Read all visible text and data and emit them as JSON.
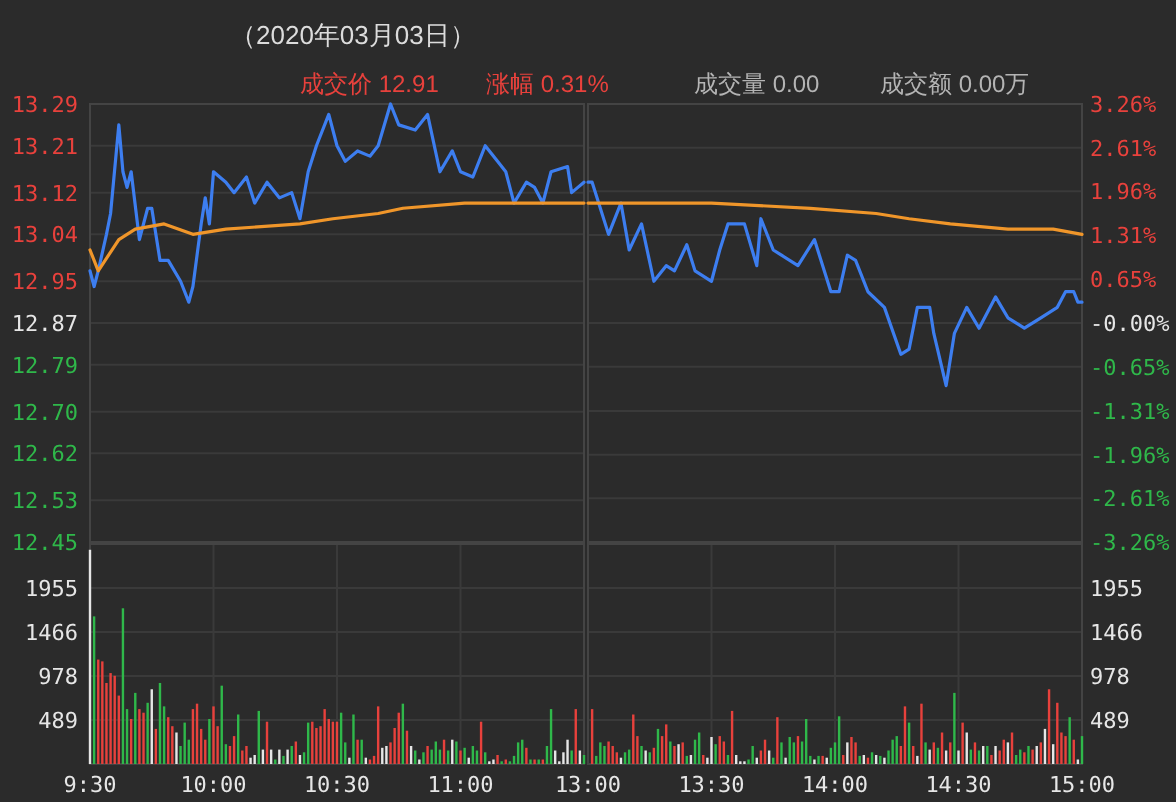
{
  "chart_data": [
    {
      "type": "line",
      "title": "（2020年03月03日）",
      "annotations": [
        "成交价 12.91",
        "涨幅 0.31%",
        "成交量 0.00",
        "成交额 0.00万"
      ],
      "series": [
        {
          "color": "#3d7ef0",
          "x": [
            "2020-03-03T09:30",
            "2020-03-03T09:31",
            "2020-03-03T09:32",
            "2020-03-03T09:34",
            "2020-03-03T09:35",
            "2020-03-03T09:37",
            "2020-03-03T09:38",
            "2020-03-03T09:39",
            "2020-03-03T09:40",
            "2020-03-03T09:42",
            "2020-03-03T09:44",
            "2020-03-03T09:45",
            "2020-03-03T09:47",
            "2020-03-03T09:49",
            "2020-03-03T09:52",
            "2020-03-03T09:54",
            "2020-03-03T09:55",
            "2020-03-03T09:57",
            "2020-03-03T09:58",
            "2020-03-03T09:59",
            "2020-03-03T10:00",
            "2020-03-03T10:03",
            "2020-03-03T10:05",
            "2020-03-03T10:08",
            "2020-03-03T10:10",
            "2020-03-03T10:13",
            "2020-03-03T10:16",
            "2020-03-03T10:19",
            "2020-03-03T10:21",
            "2020-03-03T10:23",
            "2020-03-03T10:25",
            "2020-03-03T10:28",
            "2020-03-03T10:30",
            "2020-03-03T10:32",
            "2020-03-03T10:35",
            "2020-03-03T10:38",
            "2020-03-03T10:40",
            "2020-03-03T10:43",
            "2020-03-03T10:45",
            "2020-03-03T10:49",
            "2020-03-03T10:52",
            "2020-03-03T10:55",
            "2020-03-03T10:58",
            "2020-03-03T11:00",
            "2020-03-03T11:03",
            "2020-03-03T11:06",
            "2020-03-03T11:09",
            "2020-03-03T11:11",
            "2020-03-03T11:13",
            "2020-03-03T11:16",
            "2020-03-03T11:18",
            "2020-03-03T11:20",
            "2020-03-03T11:22",
            "2020-03-03T11:26",
            "2020-03-03T11:27",
            "2020-03-03T11:30"
          ],
          "values": [
            12.97,
            12.94,
            12.97,
            13.04,
            13.08,
            13.25,
            13.16,
            13.13,
            13.16,
            13.03,
            13.09,
            13.09,
            12.99,
            12.99,
            12.95,
            12.91,
            12.94,
            13.06,
            13.11,
            13.06,
            13.16,
            13.14,
            13.12,
            13.15,
            13.1,
            13.14,
            13.11,
            13.12,
            13.07,
            13.16,
            13.21,
            13.27,
            13.21,
            13.18,
            13.2,
            13.19,
            13.21,
            13.29,
            13.25,
            13.24,
            13.27,
            13.16,
            13.2,
            13.16,
            13.15,
            13.21,
            13.18,
            13.16,
            13.1,
            13.14,
            13.13,
            13.1,
            13.16,
            13.17,
            13.12,
            13.14
          ]
        },
        {
          "color": "#f0962a",
          "x": [
            "2020-03-03T09:30",
            "2020-03-03T09:32",
            "2020-03-03T09:37",
            "2020-03-03T09:41",
            "2020-03-03T09:48",
            "2020-03-03T09:55",
            "2020-03-03T10:03",
            "2020-03-03T10:21",
            "2020-03-03T10:29",
            "2020-03-03T10:40",
            "2020-03-03T10:46",
            "2020-03-03T11:01",
            "2020-03-03T11:30"
          ],
          "values": [
            13.01,
            12.97,
            13.03,
            13.05,
            13.06,
            13.04,
            13.05,
            13.06,
            13.07,
            13.08,
            13.09,
            13.1,
            13.1
          ]
        }
      ],
      "xlim": [
        "2020-03-03T09:30",
        "2020-03-03T11:30"
      ],
      "ylim": [
        12.45,
        13.29
      ],
      "yticks": [
        13.29,
        13.21,
        13.12,
        13.04,
        12.95,
        12.87,
        12.79,
        {
          "value": 12.7,
          "label": "12.70"
        },
        12.62,
        12.53,
        12.45
      ],
      "tick_labels": "y",
      "grid": "y"
    },
    {
      "type": "line",
      "series": [
        {
          "color": "#3d7ef0",
          "x": [
            "2020-03-03T13:00",
            "2020-03-03T13:01",
            "2020-03-03T13:05",
            "2020-03-03T13:08",
            "2020-03-03T13:10",
            "2020-03-03T13:13",
            "2020-03-03T13:16",
            "2020-03-03T13:19",
            "2020-03-03T13:21",
            "2020-03-03T13:24",
            "2020-03-03T13:26",
            "2020-03-03T13:30",
            "2020-03-03T13:32",
            "2020-03-03T13:34",
            "2020-03-03T13:38",
            "2020-03-03T13:41",
            "2020-03-03T13:42",
            "2020-03-03T13:45",
            "2020-03-03T13:47",
            "2020-03-03T13:51",
            "2020-03-03T13:55",
            "2020-03-03T13:59",
            "2020-03-03T14:01",
            "2020-03-03T14:03",
            "2020-03-03T14:05",
            "2020-03-03T14:08",
            "2020-03-03T14:12",
            "2020-03-03T14:16",
            "2020-03-03T14:18",
            "2020-03-03T14:20",
            "2020-03-03T14:23",
            "2020-03-03T14:24",
            "2020-03-03T14:27",
            "2020-03-03T14:29",
            "2020-03-03T14:32",
            "2020-03-03T14:35",
            "2020-03-03T14:39",
            "2020-03-03T14:42",
            "2020-03-03T14:46",
            "2020-03-03T14:50",
            "2020-03-03T14:54",
            "2020-03-03T14:56",
            "2020-03-03T14:58",
            "2020-03-03T14:59",
            "2020-03-03T15:00"
          ],
          "values": [
            13.14,
            13.14,
            13.04,
            13.1,
            13.01,
            13.06,
            12.95,
            12.98,
            12.97,
            13.02,
            12.97,
            12.95,
            13.01,
            13.06,
            13.06,
            12.98,
            13.07,
            13.01,
            13.0,
            12.98,
            13.03,
            12.93,
            12.93,
            13.0,
            12.99,
            12.93,
            12.9,
            12.81,
            12.82,
            12.9,
            12.9,
            12.85,
            12.75,
            12.85,
            12.9,
            12.86,
            12.92,
            12.88,
            12.86,
            12.88,
            12.9,
            12.93,
            12.93,
            12.91,
            12.91
          ]
        },
        {
          "color": "#f0962a",
          "x": [
            "2020-03-03T13:00",
            "2020-03-03T13:30",
            "2020-03-03T13:54",
            "2020-03-03T14:10",
            "2020-03-03T14:18",
            "2020-03-03T14:28",
            "2020-03-03T14:42",
            "2020-03-03T14:53",
            "2020-03-03T15:00"
          ],
          "values": [
            13.1,
            13.1,
            13.09,
            13.08,
            13.07,
            13.06,
            13.05,
            13.05,
            13.04
          ]
        }
      ],
      "xlim": [
        "2020-03-03T13:00",
        "2020-03-03T15:00"
      ],
      "ylim": [
        12.45,
        13.29
      ],
      "y2lim": [
        -3.26,
        3.26
      ],
      "y2ticks": [
        {
          "value": 3.26,
          "label": "3.26%"
        },
        {
          "value": 2.61,
          "label": "2.61%"
        },
        {
          "value": 1.96,
          "label": "1.96%"
        },
        {
          "value": 1.31,
          "label": "1.31%"
        },
        {
          "value": 0.65,
          "label": "0.65%"
        },
        {
          "value": 0,
          "label": "-0.00%"
        },
        {
          "value": -0.65,
          "label": "-0.65%"
        },
        {
          "value": -1.31,
          "label": "-1.31%"
        },
        {
          "value": -1.96,
          "label": "-1.96%"
        },
        {
          "value": -2.61,
          "label": "-2.61%"
        },
        {
          "value": -3.26,
          "label": "-3.26%"
        }
      ],
      "tick_labels": "y",
      "grid": "y"
    },
    {
      "type": "bar",
      "series": [
        {
          "x": [
            "2020-03-03T09:30",
            "2020-03-03T09:31",
            "2020-03-03T09:32",
            "2020-03-03T09:33",
            "2020-03-03T09:34",
            "2020-03-03T09:35",
            "2020-03-03T09:36",
            "2020-03-03T09:37",
            "2020-03-03T09:38",
            "2020-03-03T09:39",
            "2020-03-03T09:40",
            "2020-03-03T09:41",
            "2020-03-03T09:42",
            "2020-03-03T09:43",
            "2020-03-03T09:44",
            "2020-03-03T09:45",
            "2020-03-03T09:46",
            "2020-03-03T09:47",
            "2020-03-03T09:48",
            "2020-03-03T09:49",
            "2020-03-03T09:50",
            "2020-03-03T09:51",
            "2020-03-03T09:52",
            "2020-03-03T09:53",
            "2020-03-03T09:54",
            "2020-03-03T09:55",
            "2020-03-03T09:56",
            "2020-03-03T09:57",
            "2020-03-03T09:58",
            "2020-03-03T09:59",
            "2020-03-03T10:00",
            "2020-03-03T10:01",
            "2020-03-03T10:02",
            "2020-03-03T10:03",
            "2020-03-03T10:04",
            "2020-03-03T10:05",
            "2020-03-03T10:06",
            "2020-03-03T10:07",
            "2020-03-03T10:08",
            "2020-03-03T10:09",
            "2020-03-03T10:10",
            "2020-03-03T10:11",
            "2020-03-03T10:12",
            "2020-03-03T10:13",
            "2020-03-03T10:14",
            "2020-03-03T10:15",
            "2020-03-03T10:16",
            "2020-03-03T10:17",
            "2020-03-03T10:18",
            "2020-03-03T10:19",
            "2020-03-03T10:20",
            "2020-03-03T10:21",
            "2020-03-03T10:22",
            "2020-03-03T10:23",
            "2020-03-03T10:24",
            "2020-03-03T10:25",
            "2020-03-03T10:26",
            "2020-03-03T10:27",
            "2020-03-03T10:28",
            "2020-03-03T10:29",
            "2020-03-03T10:30",
            "2020-03-03T10:31",
            "2020-03-03T10:32",
            "2020-03-03T10:33",
            "2020-03-03T10:34",
            "2020-03-03T10:35",
            "2020-03-03T10:36",
            "2020-03-03T10:37",
            "2020-03-03T10:38",
            "2020-03-03T10:39",
            "2020-03-03T10:40",
            "2020-03-03T10:41",
            "2020-03-03T10:42",
            "2020-03-03T10:43",
            "2020-03-03T10:44",
            "2020-03-03T10:45",
            "2020-03-03T10:46",
            "2020-03-03T10:47",
            "2020-03-03T10:48",
            "2020-03-03T10:49",
            "2020-03-03T10:50",
            "2020-03-03T10:51",
            "2020-03-03T10:52",
            "2020-03-03T10:53",
            "2020-03-03T10:54",
            "2020-03-03T10:55",
            "2020-03-03T10:56",
            "2020-03-03T10:57",
            "2020-03-03T10:58",
            "2020-03-03T10:59",
            "2020-03-03T11:00",
            "2020-03-03T11:01",
            "2020-03-03T11:02",
            "2020-03-03T11:03",
            "2020-03-03T11:04",
            "2020-03-03T11:05",
            "2020-03-03T11:06",
            "2020-03-03T11:07",
            "2020-03-03T11:08",
            "2020-03-03T11:09",
            "2020-03-03T11:10",
            "2020-03-03T11:11",
            "2020-03-03T11:12",
            "2020-03-03T11:13",
            "2020-03-03T11:14",
            "2020-03-03T11:15",
            "2020-03-03T11:16",
            "2020-03-03T11:17",
            "2020-03-03T11:18",
            "2020-03-03T11:19",
            "2020-03-03T11:20",
            "2020-03-03T11:21",
            "2020-03-03T11:22",
            "2020-03-03T11:23",
            "2020-03-03T11:24",
            "2020-03-03T11:25",
            "2020-03-03T11:26",
            "2020-03-03T11:27",
            "2020-03-03T11:28",
            "2020-03-03T11:29",
            "2020-03-03T11:30"
          ],
          "values": [
            2380,
            1640,
            1160,
            1140,
            900,
            1010,
            980,
            760,
            1730,
            610,
            500,
            790,
            610,
            570,
            680,
            830,
            390,
            900,
            640,
            520,
            420,
            350,
            200,
            460,
            270,
            610,
            670,
            390,
            270,
            500,
            640,
            420,
            870,
            220,
            200,
            310,
            550,
            150,
            200,
            70,
            100,
            590,
            160,
            470,
            160,
            50,
            160,
            90,
            160,
            200,
            250,
            100,
            130,
            460,
            470,
            400,
            420,
            610,
            500,
            470,
            470,
            570,
            240,
            70,
            550,
            270,
            270,
            70,
            50,
            90,
            640,
            180,
            200,
            240,
            400,
            570,
            670,
            370,
            200,
            150,
            50,
            130,
            200,
            160,
            250,
            160,
            270,
            150,
            270,
            250,
            150,
            180,
            70,
            200,
            150,
            470,
            130,
            30,
            50,
            100,
            30,
            50,
            30,
            90,
            240,
            270,
            180,
            50,
            50,
            50,
            50,
            200,
            610,
            150,
            30,
            130,
            270,
            150,
            610,
            150,
            100
          ],
          "colors": [
            "#e6e6e6",
            "#2fb84a",
            "#e8413c",
            "#e8413c",
            "#e8413c",
            "#e8413c",
            "#e8413c",
            "#e8413c",
            "#2fb84a",
            "#2fb84a",
            "#e8413c",
            "#2fb84a",
            "#e8413c",
            "#e8413c",
            "#2fb84a",
            "#e6e6e6",
            "#e8413c",
            "#2fb84a",
            "#2fb84a",
            "#e8413c",
            "#e8413c",
            "#e6e6e6",
            "#2fb84a",
            "#2fb84a",
            "#2fb84a",
            "#e8413c",
            "#e8413c",
            "#e8413c",
            "#e8413c",
            "#2fb84a",
            "#e8413c",
            "#e8413c",
            "#2fb84a",
            "#2fb84a",
            "#e8413c",
            "#e8413c",
            "#2fb84a",
            "#e8413c",
            "#e8413c",
            "#e6e6e6",
            "#e6e6e6",
            "#2fb84a",
            "#e6e6e6",
            "#e8413c",
            "#e6e6e6",
            "#2fb84a",
            "#e6e6e6",
            "#2fb84a",
            "#e6e6e6",
            "#2fb84a",
            "#e8413c",
            "#e6e6e6",
            "#2fb84a",
            "#2fb84a",
            "#e8413c",
            "#e8413c",
            "#e8413c",
            "#e8413c",
            "#e8413c",
            "#e8413c",
            "#e8413c",
            "#2fb84a",
            "#2fb84a",
            "#e6e6e6",
            "#2fb84a",
            "#e8413c",
            "#2fb84a",
            "#e6e6e6",
            "#e8413c",
            "#e8413c",
            "#e8413c",
            "#e6e6e6",
            "#e6e6e6",
            "#e8413c",
            "#e8413c",
            "#e8413c",
            "#2fb84a",
            "#e8413c",
            "#e6e6e6",
            "#2fb84a",
            "#e6e6e6",
            "#2fb84a",
            "#e8413c",
            "#2fb84a",
            "#2fb84a",
            "#2fb84a",
            "#e8413c",
            "#2fb84a",
            "#e6e6e6",
            "#2fb84a",
            "#e8413c",
            "#2fb84a",
            "#e6e6e6",
            "#2fb84a",
            "#2fb84a",
            "#e8413c",
            "#2fb84a",
            "#e6e6e6",
            "#e6e6e6",
            "#e8413c",
            "#2fb84a",
            "#e8413c",
            "#2fb84a",
            "#2fb84a",
            "#2fb84a",
            "#2fb84a",
            "#e8413c",
            "#2fb84a",
            "#e8413c",
            "#2fb84a",
            "#e8413c",
            "#2fb84a",
            "#2fb84a",
            "#e6e6e6",
            "#e6e6e6",
            "#e6e6e6",
            "#e6e6e6",
            "#2fb84a",
            "#e8413c",
            "#e6e6e6",
            "#2fb84a"
          ]
        }
      ],
      "xlim": [
        "2020-03-03T09:30",
        "2020-03-03T11:30"
      ],
      "xticks": [
        {
          "value": "2020-03-03T09:30",
          "label": "9:30"
        },
        {
          "value": "2020-03-03T10:00",
          "label": "10:00"
        },
        {
          "value": "2020-03-03T10:30",
          "label": "10:30"
        },
        {
          "value": "2020-03-03T11:00",
          "label": "11:00"
        }
      ],
      "ylim": [
        0,
        2444
      ],
      "yticks": [
        489,
        978,
        1466,
        1955
      ],
      "grid": true
    },
    {
      "type": "bar",
      "series": [
        {
          "axis": "y2",
          "x": [
            "2020-03-03T13:01",
            "2020-03-03T13:02",
            "2020-03-03T13:03",
            "2020-03-03T13:04",
            "2020-03-03T13:05",
            "2020-03-03T13:06",
            "2020-03-03T13:07",
            "2020-03-03T13:08",
            "2020-03-03T13:09",
            "2020-03-03T13:10",
            "2020-03-03T13:11",
            "2020-03-03T13:12",
            "2020-03-03T13:13",
            "2020-03-03T13:14",
            "2020-03-03T13:15",
            "2020-03-03T13:16",
            "2020-03-03T13:17",
            "2020-03-03T13:18",
            "2020-03-03T13:19",
            "2020-03-03T13:20",
            "2020-03-03T13:21",
            "2020-03-03T13:22",
            "2020-03-03T13:23",
            "2020-03-03T13:24",
            "2020-03-03T13:25",
            "2020-03-03T13:26",
            "2020-03-03T13:27",
            "2020-03-03T13:28",
            "2020-03-03T13:29",
            "2020-03-03T13:30",
            "2020-03-03T13:31",
            "2020-03-03T13:32",
            "2020-03-03T13:33",
            "2020-03-03T13:34",
            "2020-03-03T13:35",
            "2020-03-03T13:36",
            "2020-03-03T13:37",
            "2020-03-03T13:38",
            "2020-03-03T13:39",
            "2020-03-03T13:40",
            "2020-03-03T13:41",
            "2020-03-03T13:42",
            "2020-03-03T13:43",
            "2020-03-03T13:44",
            "2020-03-03T13:45",
            "2020-03-03T13:46",
            "2020-03-03T13:47",
            "2020-03-03T13:48",
            "2020-03-03T13:49",
            "2020-03-03T13:50",
            "2020-03-03T13:51",
            "2020-03-03T13:52",
            "2020-03-03T13:53",
            "2020-03-03T13:54",
            "2020-03-03T13:55",
            "2020-03-03T13:56",
            "2020-03-03T13:57",
            "2020-03-03T13:58",
            "2020-03-03T13:59",
            "2020-03-03T14:00",
            "2020-03-03T14:01",
            "2020-03-03T14:02",
            "2020-03-03T14:03",
            "2020-03-03T14:04",
            "2020-03-03T14:05",
            "2020-03-03T14:06",
            "2020-03-03T14:07",
            "2020-03-03T14:08",
            "2020-03-03T14:09",
            "2020-03-03T14:10",
            "2020-03-03T14:11",
            "2020-03-03T14:12",
            "2020-03-03T14:13",
            "2020-03-03T14:14",
            "2020-03-03T14:15",
            "2020-03-03T14:16",
            "2020-03-03T14:17",
            "2020-03-03T14:18",
            "2020-03-03T14:19",
            "2020-03-03T14:20",
            "2020-03-03T14:21",
            "2020-03-03T14:22",
            "2020-03-03T14:23",
            "2020-03-03T14:24",
            "2020-03-03T14:25",
            "2020-03-03T14:26",
            "2020-03-03T14:27",
            "2020-03-03T14:28",
            "2020-03-03T14:29",
            "2020-03-03T14:30",
            "2020-03-03T14:31",
            "2020-03-03T14:32",
            "2020-03-03T14:33",
            "2020-03-03T14:34",
            "2020-03-03T14:35",
            "2020-03-03T14:36",
            "2020-03-03T14:37",
            "2020-03-03T14:38",
            "2020-03-03T14:39",
            "2020-03-03T14:40",
            "2020-03-03T14:41",
            "2020-03-03T14:42",
            "2020-03-03T14:43",
            "2020-03-03T14:44",
            "2020-03-03T14:45",
            "2020-03-03T14:46",
            "2020-03-03T14:47",
            "2020-03-03T14:48",
            "2020-03-03T14:49",
            "2020-03-03T14:50",
            "2020-03-03T14:51",
            "2020-03-03T14:52",
            "2020-03-03T14:53",
            "2020-03-03T14:54",
            "2020-03-03T14:55",
            "2020-03-03T14:56",
            "2020-03-03T14:57",
            "2020-03-03T14:58",
            "2020-03-03T14:59",
            "2020-03-03T15:00"
          ],
          "values": [
            610,
            90,
            240,
            200,
            250,
            200,
            130,
            70,
            130,
            160,
            550,
            310,
            200,
            150,
            130,
            180,
            390,
            310,
            440,
            250,
            200,
            220,
            240,
            90,
            100,
            270,
            350,
            100,
            70,
            300,
            220,
            310,
            250,
            100,
            590,
            100,
            30,
            30,
            50,
            200,
            70,
            150,
            270,
            150,
            70,
            520,
            240,
            70,
            300,
            240,
            310,
            250,
            500,
            90,
            50,
            90,
            90,
            70,
            180,
            240,
            530,
            100,
            240,
            300,
            240,
            90,
            100,
            70,
            130,
            100,
            90,
            70,
            150,
            270,
            310,
            200,
            640,
            460,
            200,
            90,
            670,
            240,
            160,
            240,
            180,
            350,
            150,
            240,
            790,
            150,
            460,
            350,
            160,
            240,
            150,
            200,
            200,
            100,
            200,
            150,
            270,
            240,
            350,
            100,
            160,
            130,
            200,
            160,
            200,
            240,
            390,
            830,
            220,
            680,
            350,
            310,
            520,
            270,
            50,
            310
          ],
          "colors": [
            "#e8413c",
            "#2fb84a",
            "#2fb84a",
            "#2fb84a",
            "#e8413c",
            "#e8413c",
            "#e8413c",
            "#e6e6e6",
            "#2fb84a",
            "#2fb84a",
            "#e8413c",
            "#e8413c",
            "#2fb84a",
            "#e6e6e6",
            "#2fb84a",
            "#e8413c",
            "#2fb84a",
            "#e8413c",
            "#e8413c",
            "#2fb84a",
            "#e8413c",
            "#e6e6e6",
            "#e8413c",
            "#2fb84a",
            "#e6e6e6",
            "#2fb84a",
            "#2fb84a",
            "#e8413c",
            "#e6e6e6",
            "#e6e6e6",
            "#2fb84a",
            "#e8413c",
            "#e8413c",
            "#2fb84a",
            "#e8413c",
            "#e6e6e6",
            "#e6e6e6",
            "#e6e6e6",
            "#2fb84a",
            "#2fb84a",
            "#e6e6e6",
            "#e8413c",
            "#e8413c",
            "#e6e6e6",
            "#2fb84a",
            "#e8413c",
            "#2fb84a",
            "#e6e6e6",
            "#2fb84a",
            "#2fb84a",
            "#e8413c",
            "#2fb84a",
            "#2fb84a",
            "#2fb84a",
            "#e6e6e6",
            "#2fb84a",
            "#e8413c",
            "#e6e6e6",
            "#2fb84a",
            "#2fb84a",
            "#2fb84a",
            "#e8413c",
            "#e6e6e6",
            "#e8413c",
            "#e8413c",
            "#2fb84a",
            "#e6e6e6",
            "#e8413c",
            "#2fb84a",
            "#e6e6e6",
            "#2fb84a",
            "#e6e6e6",
            "#2fb84a",
            "#2fb84a",
            "#2fb84a",
            "#e8413c",
            "#e8413c",
            "#2fb84a",
            "#e8413c",
            "#e6e6e6",
            "#e8413c",
            "#2fb84a",
            "#e6e6e6",
            "#e8413c",
            "#2fb84a",
            "#e8413c",
            "#e6e6e6",
            "#e8413c",
            "#2fb84a",
            "#e6e6e6",
            "#e8413c",
            "#e6e6e6",
            "#2fb84a",
            "#e8413c",
            "#2fb84a",
            "#e6e6e6",
            "#2fb84a",
            "#e8413c",
            "#e6e6e6",
            "#e8413c",
            "#e8413c",
            "#e6e6e6",
            "#e8413c",
            "#2fb84a",
            "#2fb84a",
            "#e8413c",
            "#2fb84a",
            "#e8413c",
            "#e6e6e6",
            "#e8413c",
            "#e6e6e6",
            "#e8413c",
            "#e6e6e6",
            "#e8413c",
            "#e8413c",
            "#e8413c",
            "#2fb84a",
            "#e8413c",
            "#e6e6e6",
            "#2fb84a"
          ]
        }
      ],
      "xlim": [
        "2020-03-03T13:00",
        "2020-03-03T15:00"
      ],
      "xticks": [
        {
          "value": "2020-03-03T13:00",
          "label": "13:00"
        },
        {
          "value": "2020-03-03T13:30",
          "label": "13:30"
        },
        {
          "value": "2020-03-03T14:00",
          "label": "14:00"
        },
        {
          "value": "2020-03-03T14:30",
          "label": "14:30"
        },
        {
          "value": "2020-03-03T15:00",
          "label": "15:00"
        }
      ],
      "y2lim": [
        0,
        2444
      ],
      "y2ticks": [
        489,
        978,
        1466,
        1955
      ],
      "grid": true
    }
  ]
}
